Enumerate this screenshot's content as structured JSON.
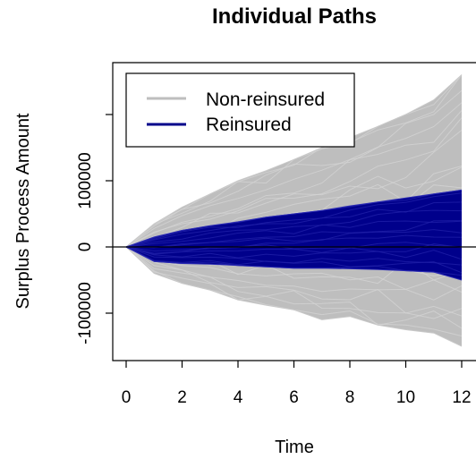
{
  "chart_data": {
    "type": "line",
    "title": "Individual Paths",
    "xlabel": "Time",
    "ylabel": "Surplus Process Amount",
    "xlim": [
      0,
      12
    ],
    "ylim": [
      -150000,
      275000
    ],
    "x_ticks": [
      0,
      2,
      4,
      6,
      8,
      10,
      12
    ],
    "y_ticks": [
      -100000,
      0,
      100000,
      200000
    ],
    "y_tick_labels": [
      "-100000",
      "0",
      "100000",
      ""
    ],
    "x_tick_labels": [
      "0",
      "2",
      "4",
      "6",
      "8",
      "10",
      "12"
    ],
    "reference_line_y": 0,
    "legend_position": "top-left",
    "grid": false,
    "series": [
      {
        "name": "Non-reinsured",
        "color": "#bebebe",
        "x": [
          0,
          1,
          2,
          3,
          4,
          5,
          6,
          7,
          8,
          9,
          10,
          11,
          12
        ],
        "upper": [
          0,
          35000,
          60000,
          80000,
          100000,
          115000,
          132000,
          150000,
          165000,
          182000,
          200000,
          222000,
          260000
        ],
        "lower": [
          0,
          -40000,
          -55000,
          -65000,
          -80000,
          -88000,
          -95000,
          -110000,
          -105000,
          -118000,
          -125000,
          -130000,
          -150000
        ]
      },
      {
        "name": "Reinsured",
        "color": "#00008b",
        "x": [
          0,
          1,
          2,
          3,
          4,
          5,
          6,
          7,
          8,
          9,
          10,
          11,
          12
        ],
        "upper": [
          0,
          15000,
          25000,
          32000,
          38000,
          45000,
          50000,
          55000,
          62000,
          68000,
          74000,
          80000,
          86000
        ],
        "lower": [
          0,
          -22000,
          -25000,
          -26000,
          -28000,
          -30000,
          -32000,
          -32000,
          -33000,
          -34000,
          -36000,
          -38000,
          -50000
        ]
      }
    ]
  }
}
